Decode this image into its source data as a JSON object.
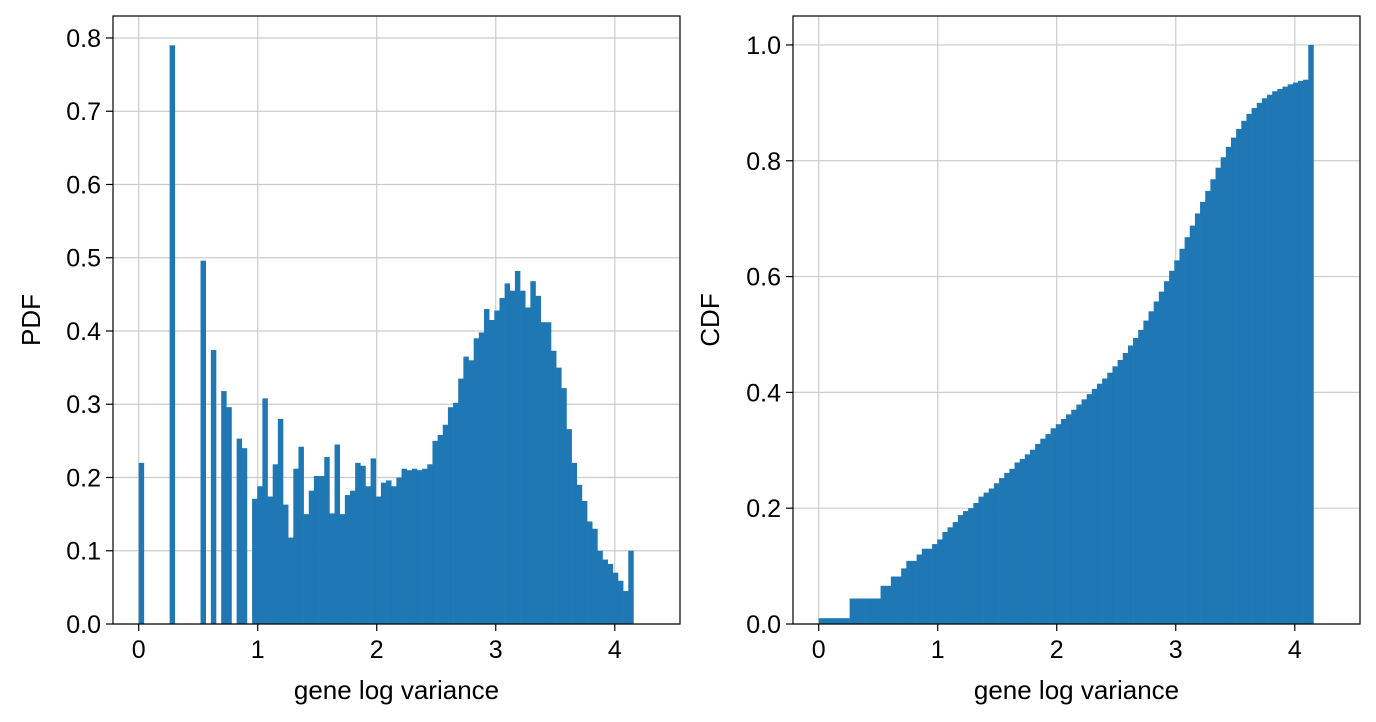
{
  "chart_data": [
    {
      "type": "bar",
      "ylabel": "PDF",
      "xlabel": "gene log variance",
      "xlim": [
        -0.216,
        4.548
      ],
      "ylim": [
        0,
        0.83
      ],
      "xticks": [
        0,
        1,
        2,
        3,
        4
      ],
      "xtick_labels": [
        "0",
        "1",
        "2",
        "3",
        "4"
      ],
      "yticks": [
        0.0,
        0.1,
        0.2,
        0.3,
        0.4,
        0.5,
        0.6,
        0.7,
        0.8
      ],
      "ytick_labels": [
        "0.0",
        "0.1",
        "0.2",
        "0.3",
        "0.4",
        "0.5",
        "0.6",
        "0.7",
        "0.8"
      ],
      "grid": true,
      "color": "#1f77b4",
      "bin_start": 0.0,
      "bin_width": 0.0433,
      "values": [
        0.22,
        0,
        0,
        0,
        0,
        0,
        0.79,
        0,
        0,
        0,
        0,
        0,
        0.496,
        0,
        0.374,
        0,
        0.318,
        0.296,
        0,
        0.253,
        0.24,
        0,
        0.171,
        0.188,
        0.308,
        0.174,
        0.218,
        0.28,
        0.163,
        0.118,
        0.212,
        0.242,
        0.15,
        0.182,
        0.202,
        0.202,
        0.228,
        0.151,
        0.245,
        0.15,
        0.176,
        0.182,
        0.22,
        0.216,
        0.188,
        0.226,
        0.174,
        0.193,
        0.196,
        0.188,
        0.2,
        0.212,
        0.21,
        0.212,
        0.21,
        0.212,
        0.218,
        0.25,
        0.258,
        0.272,
        0.296,
        0.302,
        0.335,
        0.365,
        0.36,
        0.39,
        0.398,
        0.43,
        0.415,
        0.428,
        0.445,
        0.465,
        0.455,
        0.482,
        0.455,
        0.432,
        0.468,
        0.448,
        0.412,
        0.412,
        0.373,
        0.35,
        0.322,
        0.266,
        0.22,
        0.19,
        0.168,
        0.14,
        0.13,
        0.1,
        0.088,
        0.082,
        0.07,
        0.059,
        0.045,
        0.1
      ]
    },
    {
      "type": "bar",
      "ylabel": "CDF",
      "xlabel": "gene log variance",
      "xlim": [
        -0.216,
        4.548
      ],
      "ylim": [
        0,
        1.05
      ],
      "xticks": [
        0,
        1,
        2,
        3,
        4
      ],
      "xtick_labels": [
        "0",
        "1",
        "2",
        "3",
        "4"
      ],
      "yticks": [
        0.0,
        0.2,
        0.4,
        0.6,
        0.8,
        1.0
      ],
      "ytick_labels": [
        "0.0",
        "0.2",
        "0.4",
        "0.6",
        "0.8",
        "1.0"
      ],
      "grid": true,
      "color": "#1f77b4",
      "bin_start": 0.0,
      "bin_width": 0.0433,
      "values": [
        0.01,
        0.01,
        0.01,
        0.01,
        0.01,
        0.01,
        0.044,
        0.044,
        0.044,
        0.044,
        0.044,
        0.044,
        0.066,
        0.066,
        0.082,
        0.082,
        0.096,
        0.109,
        0.109,
        0.12,
        0.13,
        0.13,
        0.138,
        0.146,
        0.159,
        0.167,
        0.176,
        0.188,
        0.195,
        0.2,
        0.209,
        0.22,
        0.227,
        0.234,
        0.243,
        0.252,
        0.261,
        0.268,
        0.279,
        0.285,
        0.293,
        0.301,
        0.311,
        0.32,
        0.328,
        0.338,
        0.345,
        0.354,
        0.362,
        0.37,
        0.379,
        0.388,
        0.397,
        0.406,
        0.415,
        0.424,
        0.434,
        0.445,
        0.456,
        0.468,
        0.481,
        0.494,
        0.508,
        0.524,
        0.54,
        0.557,
        0.574,
        0.592,
        0.61,
        0.628,
        0.648,
        0.668,
        0.688,
        0.709,
        0.729,
        0.748,
        0.768,
        0.788,
        0.806,
        0.824,
        0.84,
        0.855,
        0.869,
        0.881,
        0.891,
        0.9,
        0.908,
        0.914,
        0.92,
        0.924,
        0.928,
        0.932,
        0.935,
        0.938,
        0.94,
        1.0
      ]
    }
  ]
}
